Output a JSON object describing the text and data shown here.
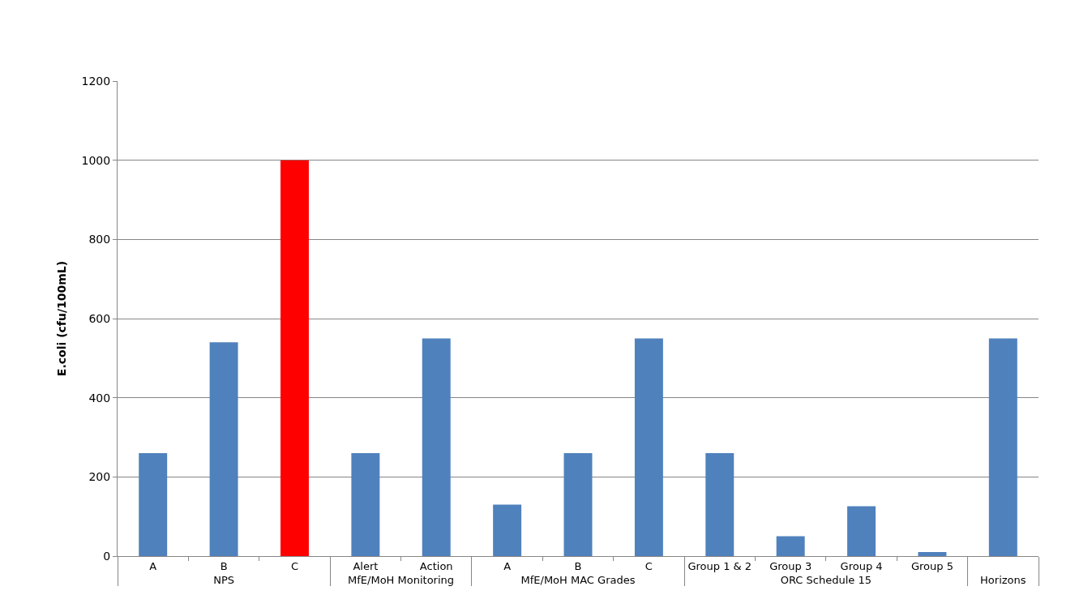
{
  "chart_data": {
    "type": "bar",
    "ylabel": "E.coli (cfu/100mL)",
    "categories": [
      "A",
      "B",
      "C",
      "Alert",
      "Action",
      "A",
      "B",
      "C",
      "Group 1 & 2",
      "Group 3",
      "Group 4",
      "Group 5",
      null
    ],
    "series": [
      {
        "name": "NPS",
        "colors": [
          "#4f81bd",
          "#4f81bd",
          "#ff0000",
          null,
          null,
          null,
          null,
          null,
          null,
          null,
          null,
          null,
          null
        ],
        "values": [
          260,
          540,
          1000,
          null,
          null,
          null,
          null,
          null,
          null,
          null,
          null,
          null,
          null
        ]
      },
      {
        "name": "MfE/MoH Monitoring",
        "color": "#4f81bd",
        "values": [
          null,
          null,
          null,
          260,
          550,
          null,
          null,
          null,
          null,
          null,
          null,
          null,
          null
        ]
      },
      {
        "name": "MfE/MoH MAC Grades",
        "color": "#4f81bd",
        "values": [
          null,
          null,
          null,
          null,
          null,
          130,
          260,
          550,
          null,
          null,
          null,
          null,
          null
        ]
      },
      {
        "name": "ORC Schedule 15",
        "color": "#4f81bd",
        "values": [
          null,
          null,
          null,
          null,
          null,
          null,
          null,
          null,
          260,
          50,
          126,
          10,
          null
        ]
      },
      {
        "name": "Horizons",
        "color": "#4f81bd",
        "values": [
          null,
          null,
          null,
          null,
          null,
          null,
          null,
          null,
          null,
          null,
          null,
          null,
          550
        ]
      }
    ],
    "ylim": [
      0,
      1200
    ],
    "yticks": [
      0,
      200,
      400,
      600,
      800,
      1000,
      1200
    ],
    "grid": "y"
  }
}
